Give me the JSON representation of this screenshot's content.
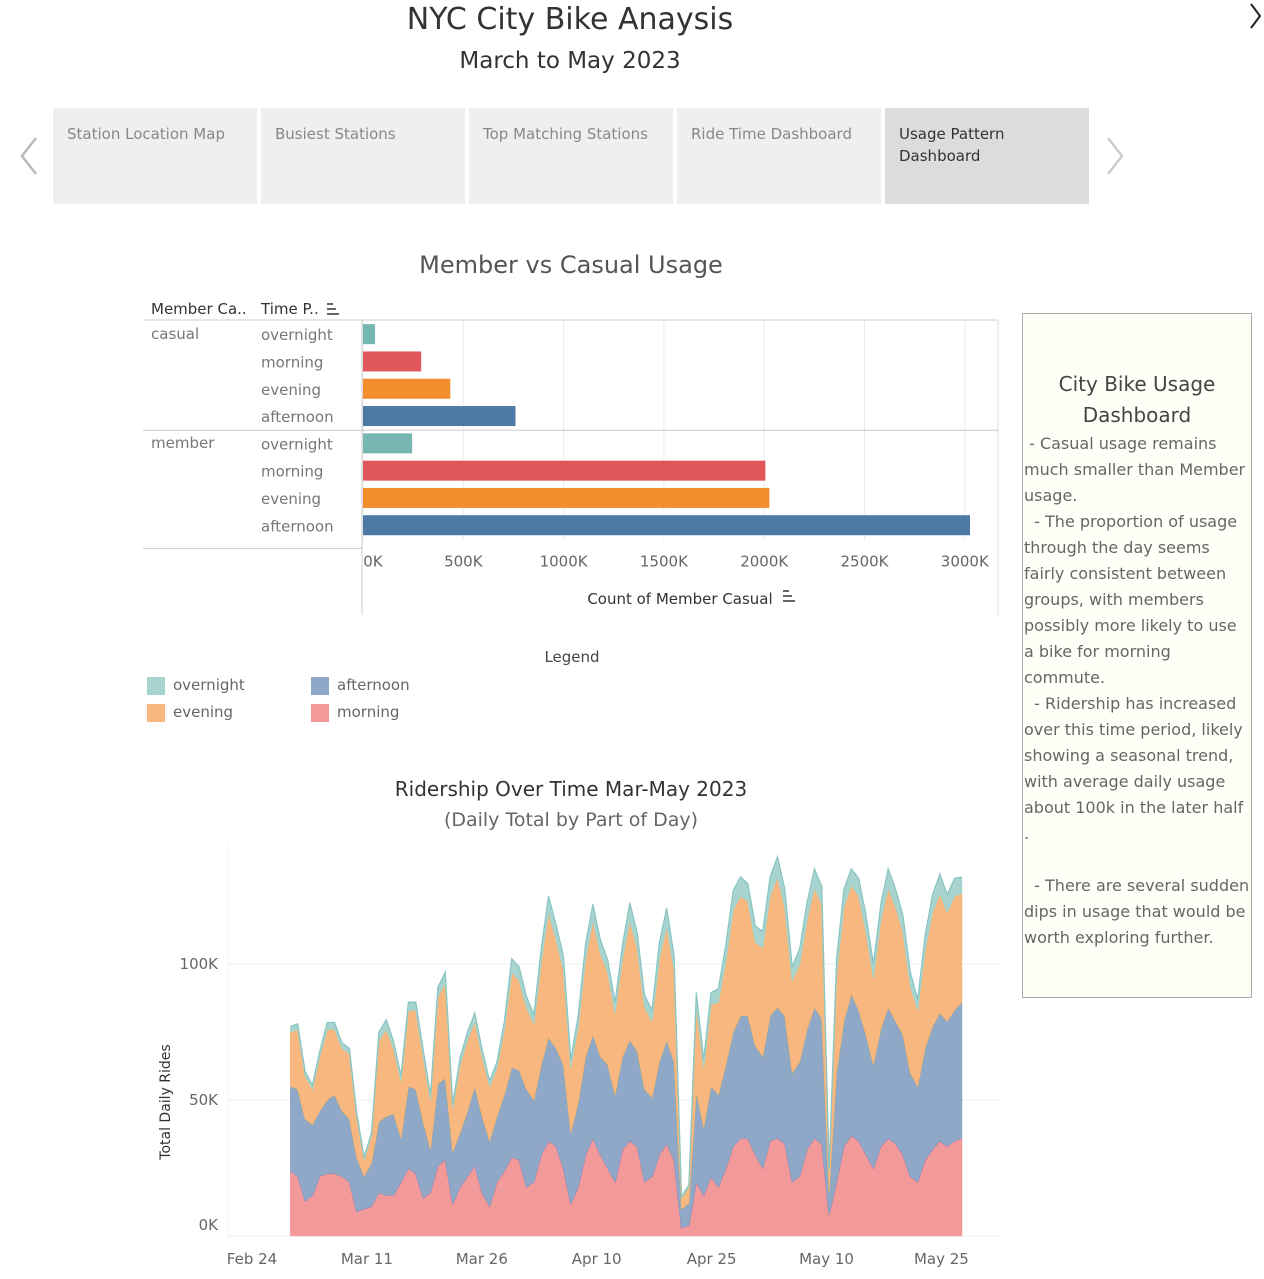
{
  "header": {
    "title": "NYC City Bike Anaysis",
    "subtitle": "March to May 2023"
  },
  "tabs": [
    {
      "label": "Station Location Map"
    },
    {
      "label": "Busiest Stations"
    },
    {
      "label": "Top Matching Stations"
    },
    {
      "label": "Ride Time Dashboard"
    },
    {
      "label": "Usage Pattern Dashboard"
    }
  ],
  "side_panel": {
    "title_line1": "City Bike Usage",
    "title_line2": "Dashboard",
    "paragraphs": [
      " - Casual usage remains much smaller than Member usage.",
      "  - The proportion of usage through the day seems fairly consistent between groups, with members possibly more likely to use a bike for morning commute.",
      "  - Ridership has increased over this time period, likely showing a seasonal trend, with average daily usage about 100k in the later half .",
      "  - There are several sudden dips in usage that would be worth exploring further."
    ]
  },
  "legend": {
    "title": "Legend",
    "items": [
      {
        "label": "overnight",
        "color": "#a8d4d0"
      },
      {
        "label": "evening",
        "color": "#f8b77e"
      },
      {
        "label": "afternoon",
        "color": "#8fa8c8"
      },
      {
        "label": "morning",
        "color": "#f29a9a"
      }
    ]
  },
  "chart_data": [
    {
      "type": "bar",
      "orientation": "horizontal",
      "title": "Member vs Casual Usage",
      "row_headers": [
        "Member Ca..",
        "Time P.."
      ],
      "xlabel": "Count of Member Casual",
      "xlim": [
        0,
        3000000
      ],
      "xticks": [
        "0K",
        "500K",
        "1000K",
        "1500K",
        "2000K",
        "2500K",
        "3000K"
      ],
      "groups": [
        {
          "name": "casual",
          "bars": [
            {
              "label": "overnight",
              "value": 60000,
              "color": "#76b7b2"
            },
            {
              "label": "morning",
              "value": 290000,
              "color": "#e15759"
            },
            {
              "label": "evening",
              "value": 435000,
              "color": "#f28e2b"
            },
            {
              "label": "afternoon",
              "value": 760000,
              "color": "#4e79a7"
            }
          ]
        },
        {
          "name": "member",
          "bars": [
            {
              "label": "overnight",
              "value": 245000,
              "color": "#76b7b2"
            },
            {
              "label": "morning",
              "value": 2005000,
              "color": "#e15759"
            },
            {
              "label": "evening",
              "value": 2025000,
              "color": "#f28e2b"
            },
            {
              "label": "afternoon",
              "value": 3025000,
              "color": "#4e79a7"
            }
          ]
        }
      ]
    },
    {
      "type": "area",
      "stacked": true,
      "title": "Ridership Over Time Mar-May 2023",
      "subtitle": "(Daily Total by Part of Day)",
      "ylabel": "Total Daily Rides",
      "ylim": [
        0,
        140000
      ],
      "yticks": [
        "0K",
        "50K",
        "100K"
      ],
      "xticks": [
        "Feb 24",
        "Mar 11",
        "Mar 26",
        "Apr 10",
        "Apr 25",
        "May 10",
        "May 25"
      ],
      "x_start": "Mar 1",
      "x_end": "May 31",
      "series": [
        {
          "name": "morning",
          "color": "#f29a9a",
          "values": [
            24000,
            22000,
            13000,
            15000,
            22000,
            23000,
            23000,
            22000,
            20000,
            9000,
            10000,
            11000,
            16000,
            15000,
            15000,
            20000,
            25000,
            23000,
            14000,
            16000,
            26000,
            28000,
            12000,
            18000,
            22000,
            26000,
            16000,
            11000,
            20000,
            24000,
            29000,
            28000,
            18000,
            20000,
            30000,
            35000,
            33000,
            25000,
            12000,
            18000,
            30000,
            36000,
            30000,
            25000,
            20000,
            32000,
            35000,
            33000,
            20000,
            22000,
            30000,
            34000,
            28000,
            3000,
            4000,
            20000,
            15000,
            22000,
            18000,
            25000,
            33000,
            36000,
            36000,
            30000,
            25000,
            35000,
            36000,
            34000,
            20000,
            22000,
            32000,
            36000,
            34000,
            8000,
            20000,
            33000,
            37000,
            35000,
            30000,
            25000,
            33000,
            36000,
            34000,
            30000,
            22000,
            20000,
            28000,
            32000,
            35000,
            33000,
            35000,
            36000
          ]
        },
        {
          "name": "afternoon",
          "color": "#8fa8c8",
          "values": [
            31000,
            32000,
            30000,
            26000,
            24000,
            27000,
            29000,
            24000,
            23000,
            20000,
            12000,
            16000,
            26000,
            29000,
            30000,
            16000,
            30000,
            31000,
            28000,
            16000,
            30000,
            30000,
            19000,
            20000,
            24000,
            29000,
            28000,
            24000,
            24000,
            28000,
            33000,
            33000,
            36000,
            30000,
            33000,
            38000,
            36000,
            38000,
            26000,
            31000,
            36000,
            38000,
            36000,
            38000,
            32000,
            34000,
            37000,
            35000,
            34000,
            29000,
            34000,
            38000,
            36000,
            7000,
            8000,
            33000,
            25000,
            33000,
            34000,
            38000,
            42000,
            45000,
            45000,
            40000,
            41000,
            46000,
            48000,
            47000,
            40000,
            42000,
            44000,
            48000,
            46000,
            8000,
            40000,
            46000,
            52000,
            48000,
            44000,
            38000,
            43000,
            48000,
            45000,
            44000,
            38000,
            35000,
            41000,
            45000,
            47000,
            46000,
            48000,
            50000
          ]
        },
        {
          "name": "evening",
          "color": "#f8b77e",
          "values": [
            20000,
            22000,
            16000,
            13000,
            20000,
            26000,
            24000,
            23000,
            24000,
            15000,
            6000,
            10000,
            30000,
            32000,
            24000,
            21000,
            28000,
            29000,
            24000,
            18000,
            32000,
            35000,
            16000,
            25000,
            26000,
            24000,
            22000,
            20000,
            18000,
            24000,
            35000,
            33000,
            30000,
            28000,
            38000,
            46000,
            40000,
            35000,
            24000,
            28000,
            36000,
            42000,
            38000,
            34000,
            30000,
            36000,
            44000,
            38000,
            30000,
            28000,
            38000,
            42000,
            34000,
            4000,
            6000,
            32000,
            22000,
            30000,
            34000,
            38000,
            45000,
            44000,
            42000,
            38000,
            40000,
            44000,
            48000,
            40000,
            34000,
            36000,
            40000,
            44000,
            42000,
            8000,
            36000,
            42000,
            40000,
            42000,
            38000,
            32000,
            40000,
            44000,
            42000,
            38000,
            32000,
            28000,
            36000,
            42000,
            44000,
            40000,
            42000,
            40000
          ]
        },
        {
          "name": "overnight",
          "color": "#a8d4d0",
          "values": [
            2000,
            2000,
            1500,
            1500,
            2000,
            2500,
            2500,
            2000,
            2000,
            1500,
            1000,
            1000,
            3000,
            3500,
            2500,
            2000,
            3000,
            3000,
            2500,
            2000,
            3500,
            4000,
            1500,
            2500,
            3000,
            3000,
            2500,
            2000,
            2000,
            3000,
            5000,
            5000,
            4000,
            3500,
            5000,
            6000,
            5500,
            5000,
            3000,
            4000,
            5500,
            6000,
            5000,
            4500,
            4000,
            5000,
            6500,
            5500,
            4500,
            4000,
            6000,
            6500,
            5000,
            500,
            800,
            4500,
            3000,
            4500,
            5000,
            6000,
            7000,
            7000,
            6500,
            6000,
            6000,
            7000,
            7500,
            6500,
            5000,
            5500,
            6500,
            7000,
            6500,
            1000,
            5500,
            6500,
            6000,
            6500,
            6000,
            5000,
            6000,
            7000,
            6500,
            6000,
            5000,
            4000,
            5500,
            6500,
            7000,
            6500,
            6500,
            6000
          ]
        }
      ]
    }
  ]
}
